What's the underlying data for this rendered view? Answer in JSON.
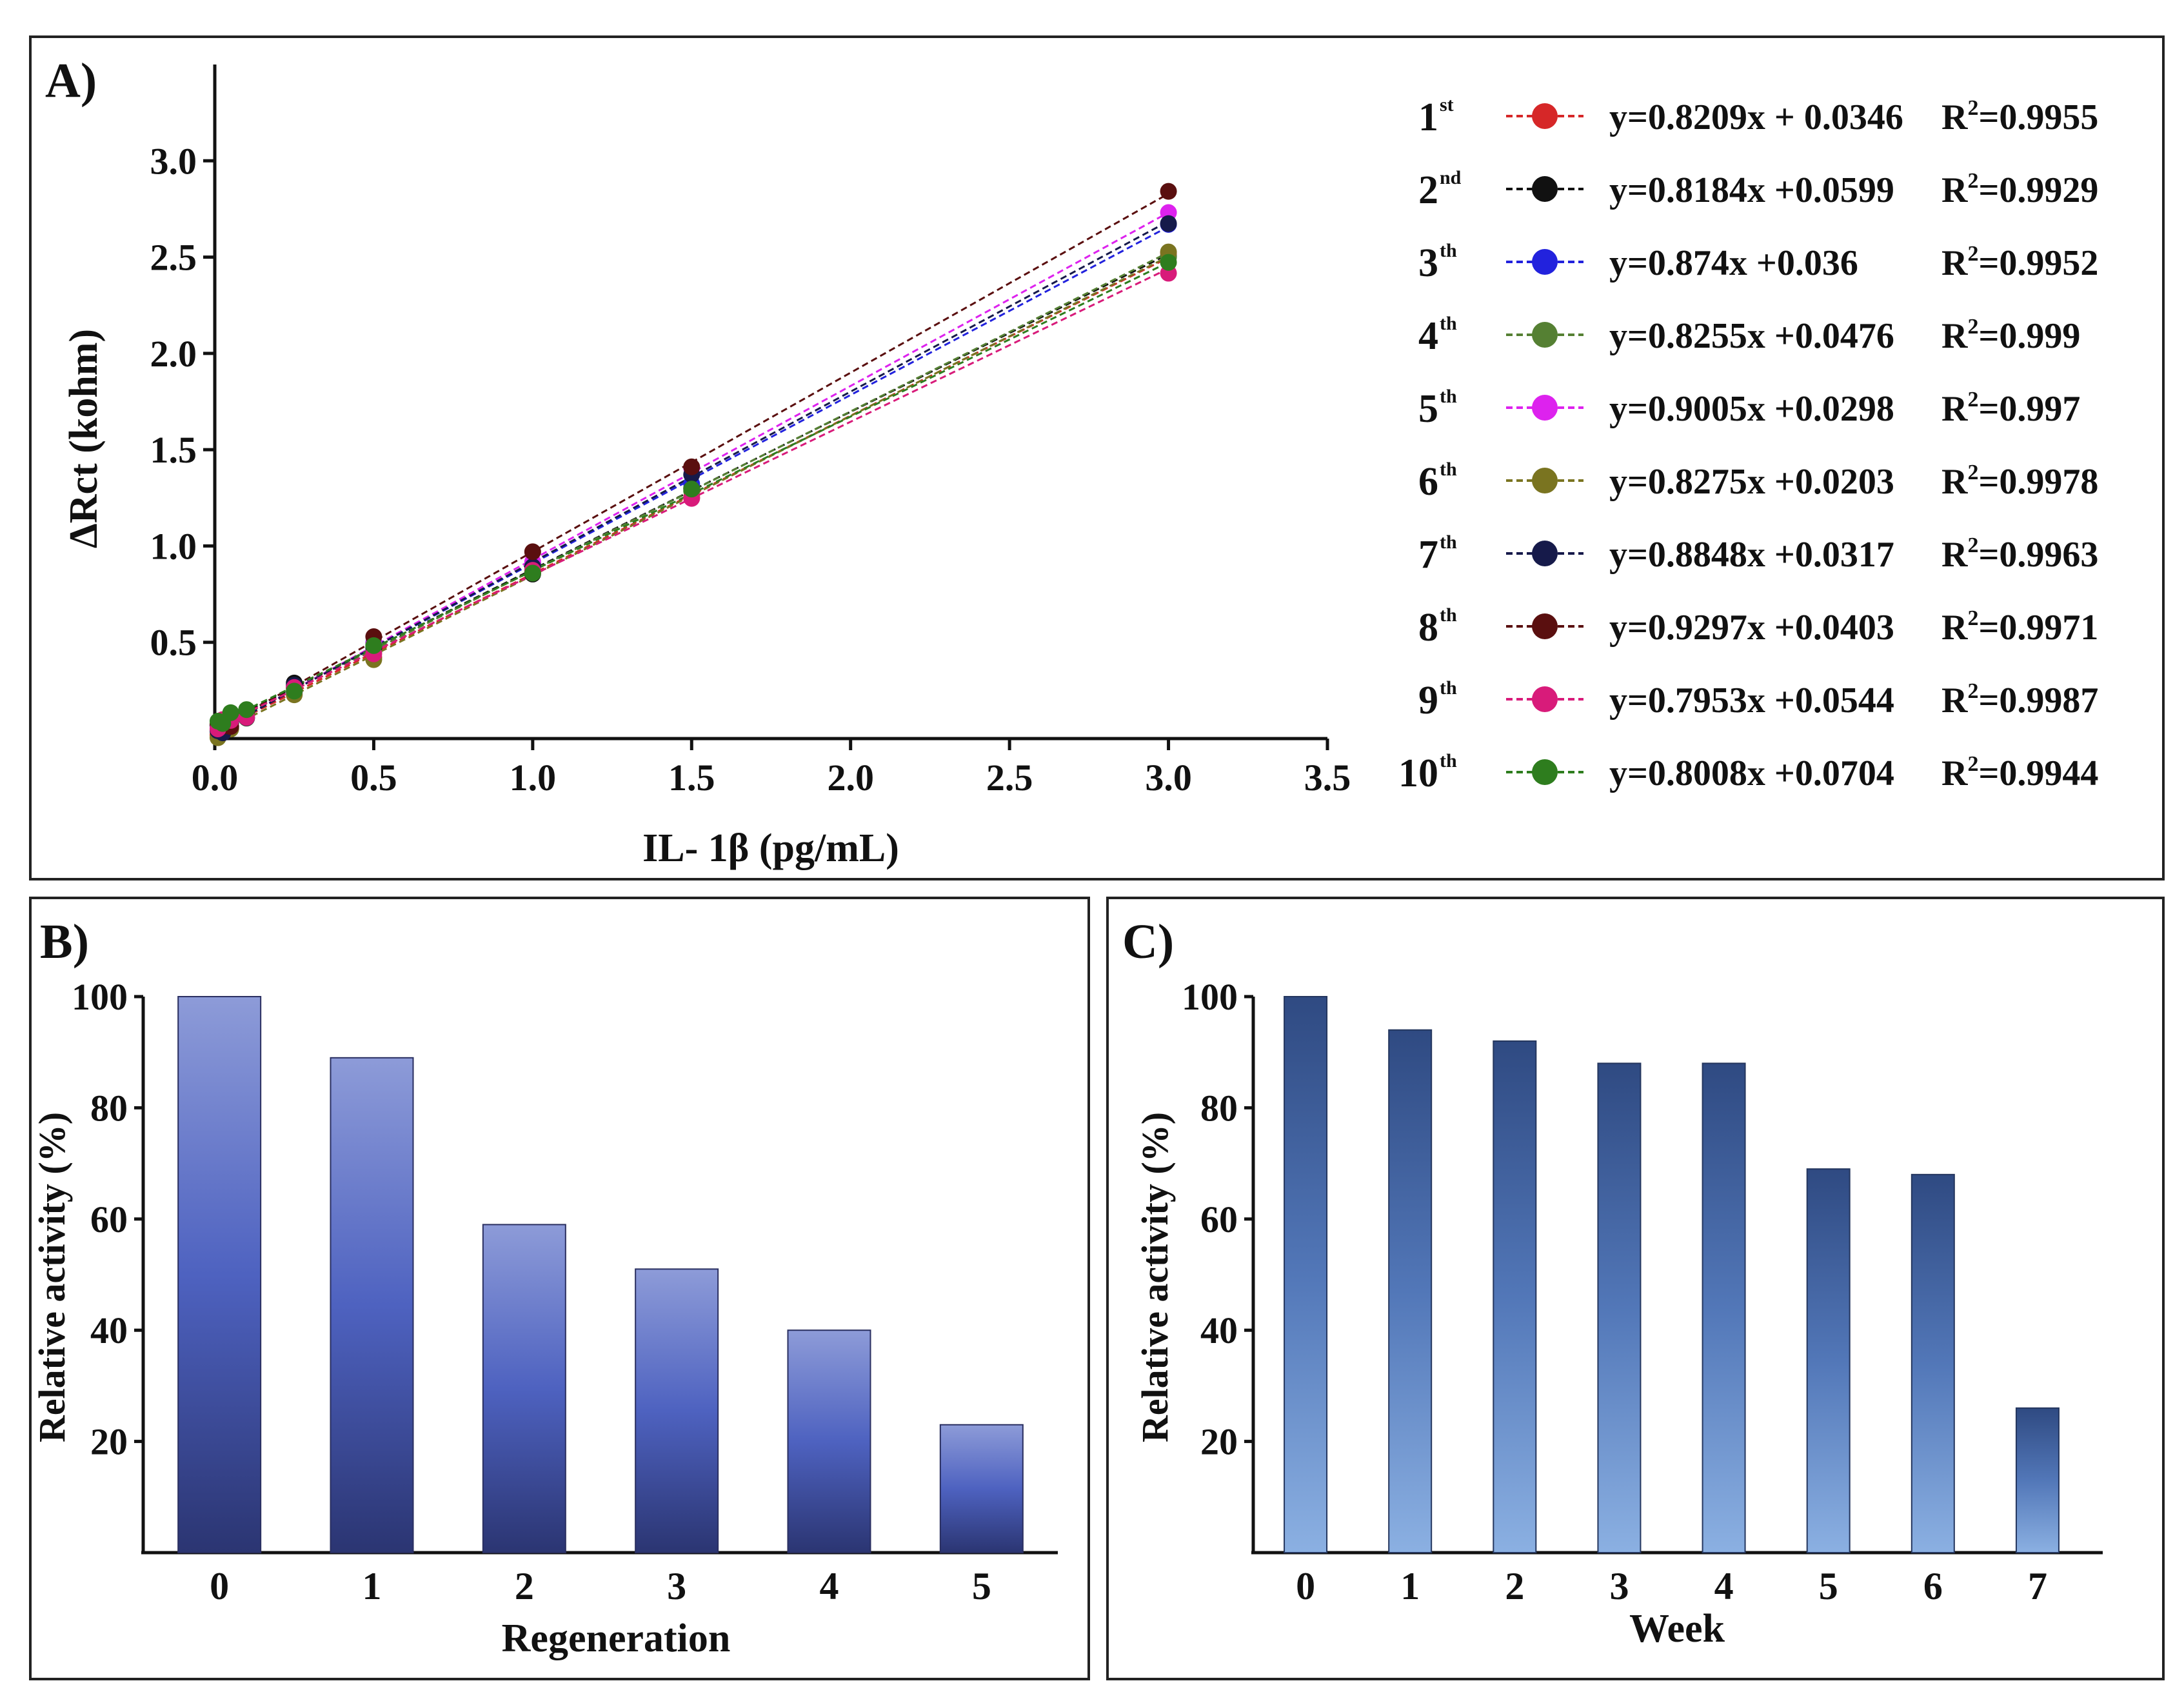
{
  "chart_data": [
    {
      "panel_label": "A)",
      "type": "scatter",
      "xlabel": "IL- 1β (pg/mL)",
      "ylabel": "ΔRct (kohm)",
      "xlim": [
        0,
        3.5
      ],
      "ylim": [
        0,
        3.5
      ],
      "x_ticks": [
        "0.0",
        "0.5",
        "1.0",
        "1.5",
        "2.0",
        "2.5",
        "3.0",
        "3.5"
      ],
      "y_ticks": [
        "0.5",
        "1.0",
        "1.5",
        "2.0",
        "2.5",
        "3.0"
      ],
      "x": [
        0.01,
        0.025,
        0.05,
        0.1,
        0.25,
        0.5,
        1.0,
        1.5,
        3.0
      ],
      "series": [
        {
          "num": "1",
          "suffix": "st",
          "color": "#d62728",
          "equation": "y=0.8209x + 0.0346",
          "r2_label": "R",
          "r2_value": "=0.9955",
          "slope": 0.8209,
          "intercept": 0.0346
        },
        {
          "num": "2",
          "suffix": "nd",
          "color": "#111111",
          "equation": "y=0.8184x +0.0599",
          "r2_label": "R",
          "r2_value": "=0.9929",
          "slope": 0.8184,
          "intercept": 0.0599
        },
        {
          "num": "3",
          "suffix": "th",
          "color": "#2222dd",
          "equation": "y=0.874x +0.036",
          "r2_label": "R",
          "r2_value": "=0.9952",
          "slope": 0.874,
          "intercept": 0.036
        },
        {
          "num": "4",
          "suffix": "th",
          "color": "#558033",
          "equation": "y=0.8255x +0.0476",
          "r2_label": "R",
          "r2_value": "=0.999",
          "slope": 0.8255,
          "intercept": 0.0476
        },
        {
          "num": "5",
          "suffix": "th",
          "color": "#dd22ee",
          "equation": "y=0.9005x +0.0298",
          "r2_label": "R",
          "r2_value": "=0.997",
          "slope": 0.9005,
          "intercept": 0.0298
        },
        {
          "num": "6",
          "suffix": "th",
          "color": "#7a7420",
          "equation": "y=0.8275x +0.0203",
          "r2_label": "R",
          "r2_value": "=0.9978",
          "slope": 0.8275,
          "intercept": 0.0203
        },
        {
          "num": "7",
          "suffix": "th",
          "color": "#161a4a",
          "equation": "y=0.8848x +0.0317",
          "r2_label": "R",
          "r2_value": "=0.9963",
          "slope": 0.8848,
          "intercept": 0.0317
        },
        {
          "num": "8",
          "suffix": "th",
          "color": "#5a0f0f",
          "equation": "y=0.9297x +0.0403",
          "r2_label": "R",
          "r2_value": "=0.9971",
          "slope": 0.9297,
          "intercept": 0.0403
        },
        {
          "num": "9",
          "suffix": "th",
          "color": "#d81b7a",
          "equation": "y=0.7953x +0.0544",
          "r2_label": "R",
          "r2_value": "=0.9987",
          "slope": 0.7953,
          "intercept": 0.0544
        },
        {
          "num": "10",
          "suffix": "th",
          "color": "#2e7d1e",
          "equation": "y=0.8008x +0.0704",
          "r2_label": "R",
          "r2_value": "=0.9944",
          "slope": 0.8008,
          "intercept": 0.0704
        }
      ]
    },
    {
      "panel_label": "B)",
      "type": "bar",
      "xlabel": "Regeneration",
      "ylabel": "Relative activity (%)",
      "categories": [
        "0",
        "1",
        "2",
        "3",
        "4",
        "5"
      ],
      "values": [
        100,
        89,
        59,
        51,
        40,
        23
      ],
      "ylim": [
        0,
        100
      ],
      "y_ticks": [
        "20",
        "40",
        "60",
        "80",
        "100"
      ]
    },
    {
      "panel_label": "C)",
      "type": "bar",
      "xlabel": "Week",
      "ylabel": "Relative activity (%)",
      "categories": [
        "0",
        "1",
        "2",
        "3",
        "4",
        "5",
        "6",
        "7"
      ],
      "values": [
        100,
        94,
        92,
        88,
        88,
        69,
        68,
        26
      ],
      "ylim": [
        0,
        100
      ],
      "y_ticks": [
        "20",
        "40",
        "60",
        "80",
        "100"
      ]
    }
  ]
}
